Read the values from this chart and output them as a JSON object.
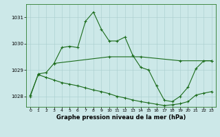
{
  "title": "Graphe pression niveau de la mer (hPa)",
  "bg_color": "#cce8e8",
  "line_color": "#1a6b1a",
  "xlim": [
    -0.5,
    23.5
  ],
  "ylim": [
    1027.6,
    1031.5
  ],
  "yticks": [
    1028,
    1029,
    1030,
    1031
  ],
  "xticks": [
    0,
    1,
    2,
    3,
    4,
    5,
    6,
    7,
    8,
    9,
    10,
    11,
    12,
    13,
    14,
    15,
    16,
    17,
    18,
    19,
    20,
    21,
    22,
    23
  ],
  "line1_x": [
    0,
    1,
    2,
    3,
    4,
    5,
    6,
    7,
    8,
    9,
    10,
    11,
    12,
    13,
    14,
    15,
    16,
    17,
    18,
    19,
    20,
    21,
    22,
    23
  ],
  "line1_y": [
    1028.0,
    1028.85,
    1028.9,
    1029.25,
    1029.85,
    1029.9,
    1029.85,
    1030.85,
    1031.2,
    1030.55,
    1030.1,
    1030.1,
    1030.25,
    1029.55,
    1029.1,
    1029.0,
    1028.4,
    1027.85,
    1027.8,
    1028.0,
    1028.35,
    1029.05,
    1029.35,
    1029.35
  ],
  "line2_x": [
    3,
    10,
    14,
    19,
    23
  ],
  "line2_y": [
    1029.25,
    1029.5,
    1029.5,
    1029.35,
    1029.35
  ],
  "line3_x": [
    0,
    1,
    2,
    3,
    4,
    5,
    6,
    7,
    8,
    9,
    10,
    11,
    12,
    13,
    14,
    15,
    16,
    17,
    18,
    19,
    20,
    21,
    22,
    23
  ],
  "line3_y": [
    1028.05,
    1028.82,
    1028.72,
    1028.62,
    1028.52,
    1028.46,
    1028.4,
    1028.32,
    1028.24,
    1028.18,
    1028.1,
    1028.0,
    1027.94,
    1027.86,
    1027.8,
    1027.75,
    1027.7,
    1027.65,
    1027.68,
    1027.72,
    1027.8,
    1028.05,
    1028.12,
    1028.18
  ]
}
